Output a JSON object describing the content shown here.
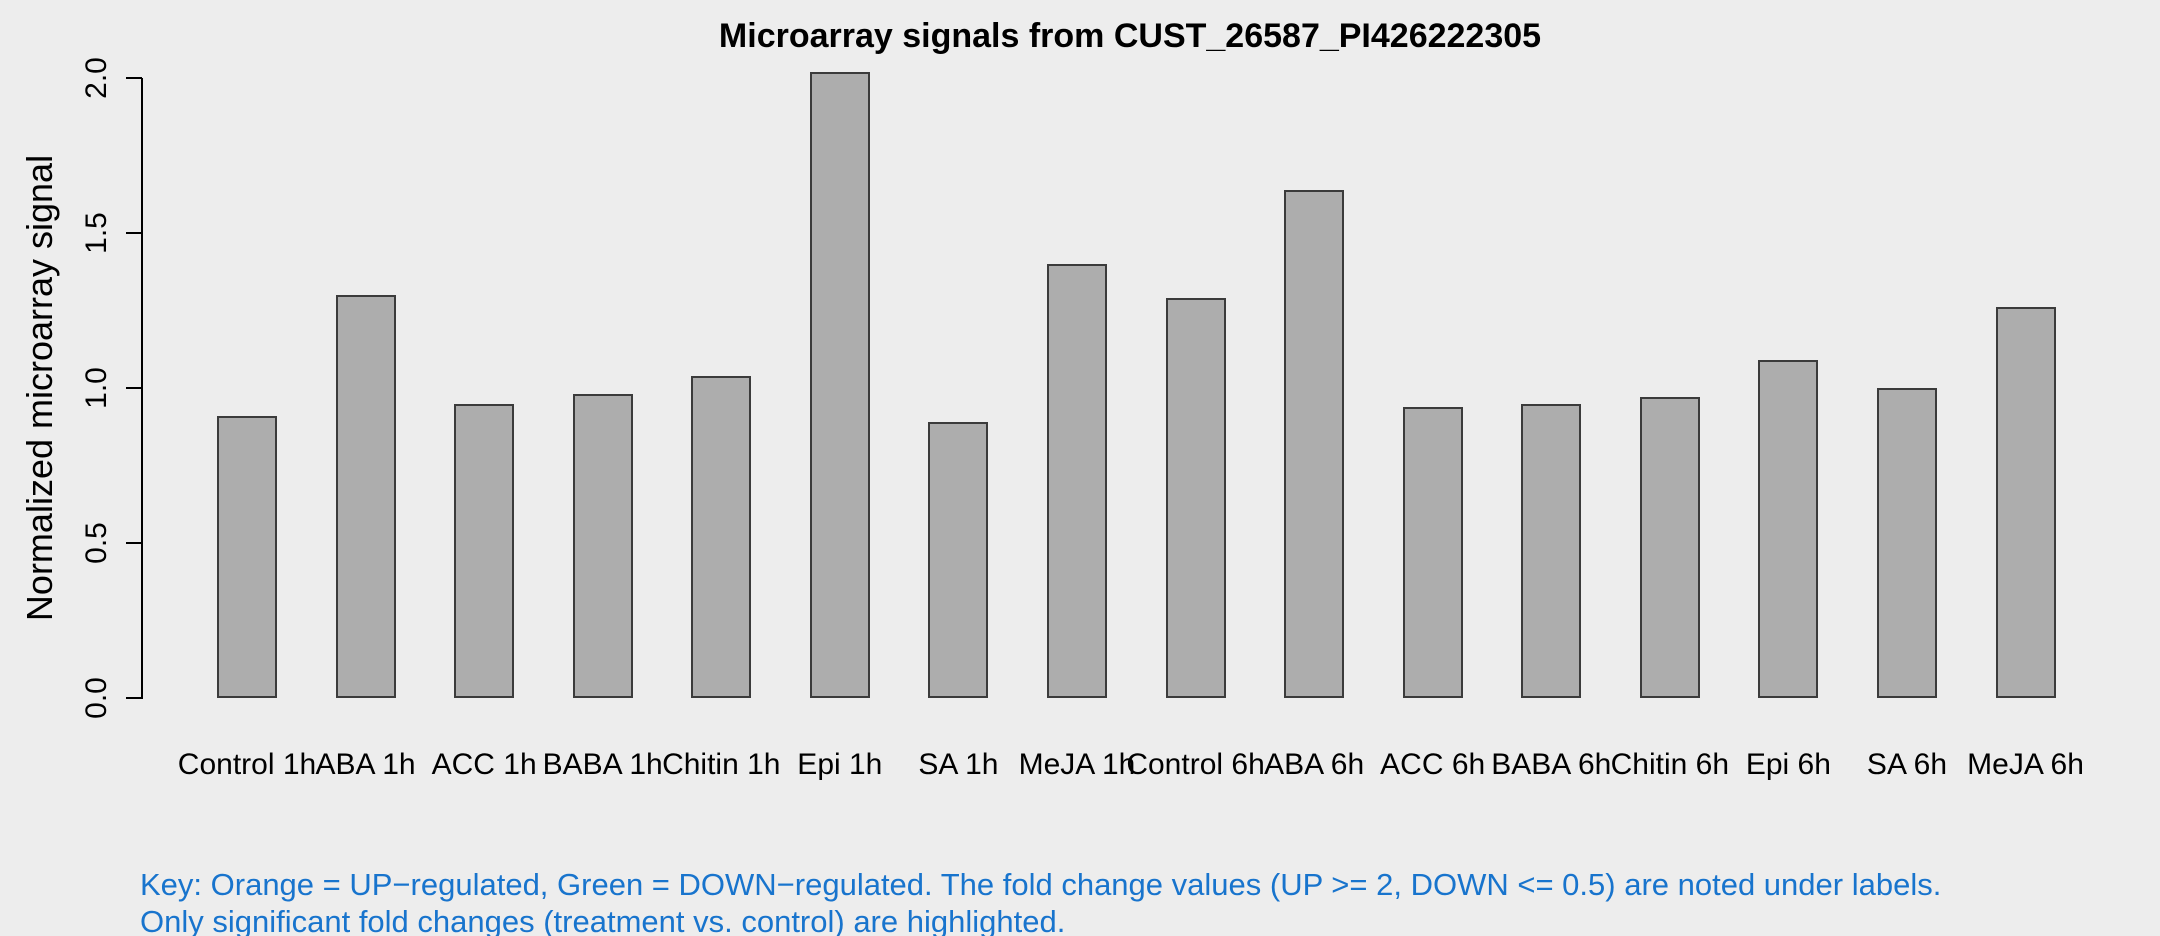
{
  "chart_data": {
    "type": "bar",
    "title": "Microarray signals from CUST_26587_PI426222305",
    "xlabel": "",
    "ylabel": "Normalized microarray signal",
    "categories": [
      "Control 1h",
      "ABA 1h",
      "ACC 1h",
      "BABA 1h",
      "Chitin 1h",
      "Epi 1h",
      "SA 1h",
      "MeJA 1h",
      "Control 6h",
      "ABA 6h",
      "ACC 6h",
      "BABA 6h",
      "Chitin 6h",
      "Epi 6h",
      "SA 6h",
      "MeJA 6h"
    ],
    "values": [
      0.91,
      1.3,
      0.95,
      0.98,
      1.04,
      2.02,
      0.89,
      1.4,
      1.29,
      1.64,
      0.94,
      0.95,
      0.97,
      1.09,
      1.0,
      1.26
    ],
    "ylim": [
      0.0,
      2.03
    ],
    "yticks": [
      0.0,
      0.5,
      1.0,
      1.5,
      2.0
    ],
    "ytick_labels": [
      "0.0",
      "0.5",
      "1.0",
      "1.5",
      "2.0"
    ],
    "grid": false,
    "legend_position": "none",
    "bar_fill_color": "#ADADAD",
    "bar_border_color": "#3B3B3B",
    "background_color": "#EDEDED",
    "axis_color": "#000000",
    "key_text_color": "#1874CD"
  },
  "key": {
    "line1": "Key: Orange = UP−regulated, Green = DOWN−regulated. The fold change values (UP >= 2, DOWN <= 0.5) are noted under labels.",
    "line2": "Only significant fold changes (treatment vs. control) are highlighted."
  }
}
